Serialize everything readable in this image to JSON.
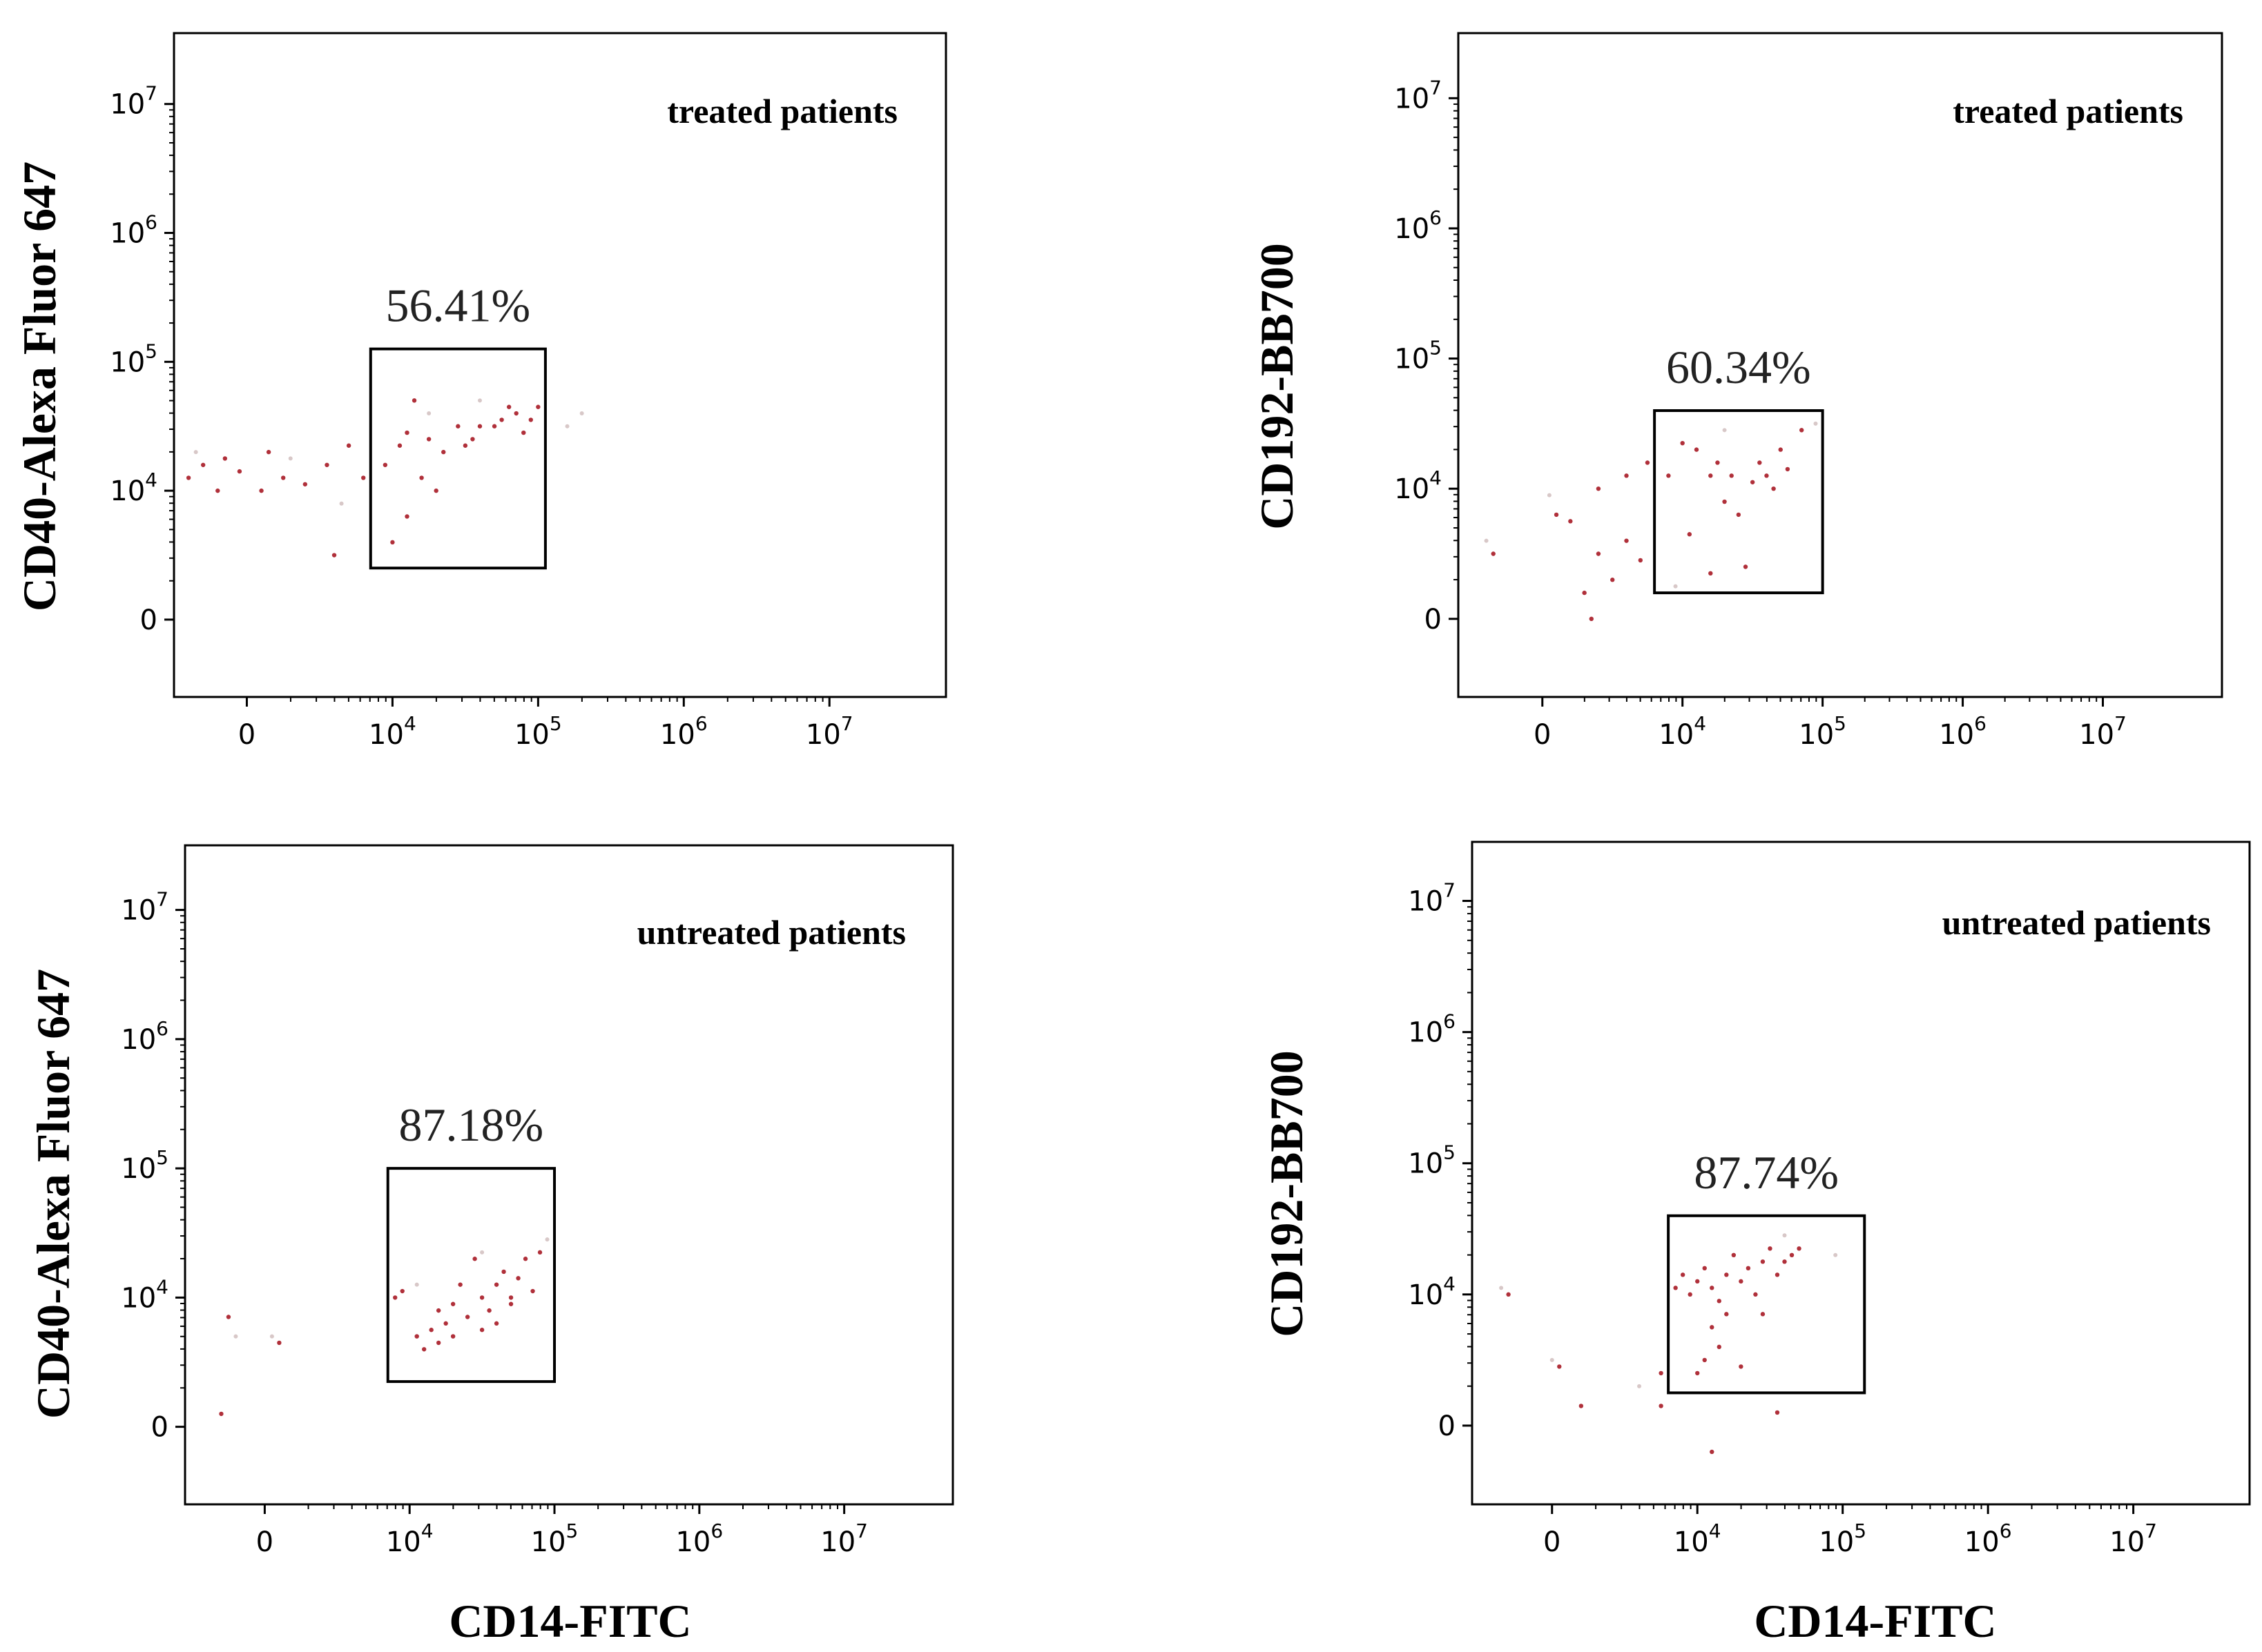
{
  "chart_data": [
    {
      "type": "scatter",
      "panel": "top-left",
      "group_label": "treated patients",
      "ylabel": "CD40-Alexa Fluor 647",
      "xlabel": "",
      "gate_percent": "56.41%",
      "x_ticks": [
        "0",
        "10^4",
        "10^5",
        "10^6",
        "10^7"
      ],
      "y_ticks": [
        "0",
        "10^4",
        "10^5",
        "10^6",
        "10^7"
      ],
      "axis_scale": "biexponential",
      "xlim": [
        -0.5,
        4.8
      ],
      "ylim": [
        -0.6,
        4.55
      ],
      "gate": {
        "x": [
          0.85,
          2.05
        ],
        "y": [
          0.4,
          2.1
        ]
      },
      "points": [
        [
          -0.4,
          1.1
        ],
        [
          -0.3,
          1.2
        ],
        [
          -0.2,
          1.0
        ],
        [
          -0.15,
          1.25
        ],
        [
          -0.05,
          1.15
        ],
        [
          0.1,
          1.0
        ],
        [
          0.15,
          1.3
        ],
        [
          0.25,
          1.1
        ],
        [
          0.4,
          1.05
        ],
        [
          0.55,
          1.2
        ],
        [
          0.6,
          0.5
        ],
        [
          0.7,
          1.35
        ],
        [
          0.8,
          1.1
        ],
        [
          0.95,
          1.2
        ],
        [
          1.0,
          0.6
        ],
        [
          1.05,
          1.35
        ],
        [
          1.1,
          0.8
        ],
        [
          1.1,
          1.45
        ],
        [
          1.15,
          1.7
        ],
        [
          1.2,
          1.1
        ],
        [
          1.25,
          1.4
        ],
        [
          1.3,
          1.0
        ],
        [
          1.35,
          1.3
        ],
        [
          1.45,
          1.5
        ],
        [
          1.55,
          1.4
        ],
        [
          1.6,
          1.5
        ],
        [
          1.7,
          1.5
        ],
        [
          1.75,
          1.55
        ],
        [
          1.85,
          1.6
        ],
        [
          1.9,
          1.45
        ],
        [
          1.95,
          1.55
        ],
        [
          2.0,
          1.65
        ],
        [
          1.8,
          1.65
        ],
        [
          1.5,
          1.35
        ]
      ],
      "faint_points": [
        [
          -0.35,
          1.3
        ],
        [
          0.3,
          1.25
        ],
        [
          0.65,
          0.9
        ],
        [
          2.2,
          1.5
        ],
        [
          2.3,
          1.6
        ],
        [
          1.25,
          1.6
        ],
        [
          1.6,
          1.7
        ]
      ]
    },
    {
      "type": "scatter",
      "panel": "top-right",
      "group_label": "treated patients",
      "ylabel": "CD192-BB700",
      "xlabel": "",
      "gate_percent": "60.34%",
      "x_ticks": [
        "0",
        "10^4",
        "10^5",
        "10^6",
        "10^7"
      ],
      "y_ticks": [
        "0",
        "10^4",
        "10^5",
        "10^6",
        "10^7"
      ],
      "axis_scale": "biexponential",
      "xlim": [
        -0.6,
        4.85
      ],
      "ylim": [
        -0.6,
        4.5
      ],
      "gate": {
        "x": [
          0.8,
          2.0
        ],
        "y": [
          0.2,
          1.6
        ]
      },
      "points": [
        [
          -0.35,
          0.5
        ],
        [
          0.1,
          0.8
        ],
        [
          0.2,
          0.75
        ],
        [
          0.4,
          0.5
        ],
        [
          0.4,
          1.0
        ],
        [
          0.5,
          0.3
        ],
        [
          0.6,
          0.6
        ],
        [
          0.6,
          1.1
        ],
        [
          0.7,
          0.45
        ],
        [
          0.75,
          1.2
        ],
        [
          0.3,
          0.2
        ],
        [
          0.35,
          0.0
        ],
        [
          0.9,
          1.1
        ],
        [
          1.0,
          1.35
        ],
        [
          1.05,
          0.65
        ],
        [
          1.1,
          1.3
        ],
        [
          1.2,
          1.1
        ],
        [
          1.25,
          1.2
        ],
        [
          1.3,
          0.9
        ],
        [
          1.35,
          1.1
        ],
        [
          1.4,
          0.8
        ],
        [
          1.5,
          1.05
        ],
        [
          1.55,
          1.2
        ],
        [
          1.6,
          1.1
        ],
        [
          1.7,
          1.3
        ],
        [
          1.75,
          1.15
        ],
        [
          1.45,
          0.4
        ],
        [
          1.2,
          0.35
        ],
        [
          1.85,
          1.45
        ],
        [
          1.65,
          1.0
        ]
      ],
      "faint_points": [
        [
          -0.4,
          0.6
        ],
        [
          0.05,
          0.95
        ],
        [
          1.95,
          1.5
        ],
        [
          1.3,
          1.45
        ],
        [
          0.95,
          0.25
        ]
      ]
    },
    {
      "type": "scatter",
      "panel": "bottom-left",
      "group_label": "untreated patients",
      "ylabel": "CD40-Alexa Fluor 647",
      "xlabel": "CD14-FITC",
      "gate_percent": "87.18%",
      "x_ticks": [
        "0",
        "10^4",
        "10^5",
        "10^6",
        "10^7"
      ],
      "y_ticks": [
        "0",
        "10^4",
        "10^5",
        "10^6",
        "10^7"
      ],
      "axis_scale": "biexponential",
      "xlim": [
        -0.55,
        4.75
      ],
      "ylim": [
        -0.6,
        4.5
      ],
      "gate": {
        "x": [
          0.85,
          2.0
        ],
        "y": [
          0.35,
          2.0
        ]
      },
      "points": [
        [
          -0.3,
          0.1
        ],
        [
          -0.25,
          0.85
        ],
        [
          0.1,
          0.65
        ],
        [
          0.9,
          1.0
        ],
        [
          0.95,
          1.05
        ],
        [
          1.05,
          0.7
        ],
        [
          1.1,
          0.6
        ],
        [
          1.15,
          0.75
        ],
        [
          1.2,
          0.9
        ],
        [
          1.25,
          0.8
        ],
        [
          1.3,
          0.95
        ],
        [
          1.35,
          1.1
        ],
        [
          1.4,
          0.85
        ],
        [
          1.45,
          1.3
        ],
        [
          1.5,
          1.0
        ],
        [
          1.55,
          0.9
        ],
        [
          1.6,
          1.1
        ],
        [
          1.65,
          1.2
        ],
        [
          1.7,
          0.95
        ],
        [
          1.75,
          1.15
        ],
        [
          1.8,
          1.3
        ],
        [
          1.85,
          1.05
        ],
        [
          1.9,
          1.35
        ],
        [
          1.5,
          0.75
        ],
        [
          1.3,
          0.7
        ],
        [
          1.6,
          0.8
        ],
        [
          1.2,
          0.65
        ],
        [
          1.7,
          1.0
        ]
      ],
      "faint_points": [
        [
          -0.2,
          0.7
        ],
        [
          0.05,
          0.7
        ],
        [
          1.95,
          1.45
        ],
        [
          1.05,
          1.1
        ],
        [
          1.5,
          1.35
        ]
      ]
    },
    {
      "type": "scatter",
      "panel": "bottom-right",
      "group_label": "untreated patients",
      "ylabel": "CD192-BB700",
      "xlabel": "CD14-FITC",
      "gate_percent": "87.74%",
      "x_ticks": [
        "0",
        "10^4",
        "10^5",
        "10^6",
        "10^7"
      ],
      "y_ticks": [
        "0",
        "10^4",
        "10^5",
        "10^6",
        "10^7"
      ],
      "axis_scale": "biexponential",
      "xlim": [
        -0.55,
        4.8
      ],
      "ylim": [
        -0.6,
        4.45
      ],
      "gate": {
        "x": [
          0.8,
          2.15
        ],
        "y": [
          0.25,
          1.6
        ]
      },
      "points": [
        [
          -0.3,
          1.0
        ],
        [
          0.05,
          0.45
        ],
        [
          0.2,
          0.15
        ],
        [
          0.75,
          0.4
        ],
        [
          0.75,
          0.15
        ],
        [
          1.1,
          -0.2
        ],
        [
          0.85,
          1.05
        ],
        [
          0.9,
          1.15
        ],
        [
          0.95,
          1.0
        ],
        [
          1.0,
          1.1
        ],
        [
          1.05,
          1.2
        ],
        [
          1.1,
          1.05
        ],
        [
          1.15,
          0.6
        ],
        [
          1.2,
          1.15
        ],
        [
          1.25,
          1.3
        ],
        [
          1.3,
          1.1
        ],
        [
          1.35,
          1.2
        ],
        [
          1.4,
          1.0
        ],
        [
          1.45,
          1.25
        ],
        [
          1.5,
          1.35
        ],
        [
          1.55,
          1.15
        ],
        [
          1.6,
          1.25
        ],
        [
          1.65,
          1.3
        ],
        [
          1.7,
          1.35
        ],
        [
          1.1,
          0.75
        ],
        [
          1.05,
          0.5
        ],
        [
          1.2,
          0.85
        ],
        [
          1.3,
          0.45
        ],
        [
          1.45,
          0.85
        ],
        [
          1.55,
          0.1
        ],
        [
          1.0,
          0.4
        ],
        [
          1.15,
          0.95
        ]
      ],
      "faint_points": [
        [
          -0.35,
          1.05
        ],
        [
          0.0,
          0.5
        ],
        [
          0.6,
          0.3
        ],
        [
          1.95,
          1.3
        ],
        [
          1.6,
          1.45
        ]
      ]
    }
  ]
}
